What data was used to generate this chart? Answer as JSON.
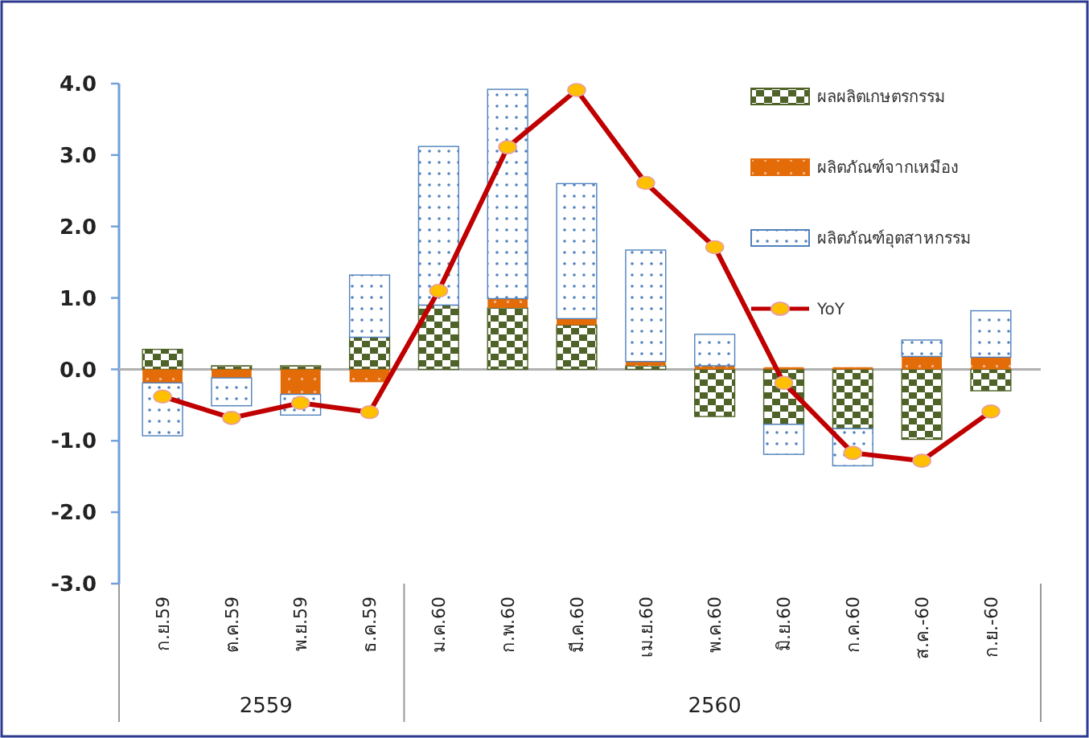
{
  "chart_data": {
    "type": "bar",
    "stacked": true,
    "categories": [
      "ก.ย.59",
      "ต.ค.59",
      "พ.ย.59",
      "ธ.ค.59",
      "ม.ค.60",
      "ก.พ.60",
      "มี.ค.60",
      "เม.ย.60",
      "พ.ค.60",
      "มิ.ย.60",
      "ก.ค.60",
      "ส.ค.-60",
      "ก.ย.-60"
    ],
    "series": [
      {
        "name": "ผลผลิตเกษตรกรรม",
        "color": "#4f6228",
        "values": [
          0.28,
          0.05,
          0.05,
          0.45,
          0.9,
          0.86,
          0.62,
          0.05,
          -0.66,
          -0.77,
          -0.83,
          -0.98,
          -0.3
        ]
      },
      {
        "name": "ผลิตภัณฑ์จากเหมือง",
        "color": "#e36c09",
        "values": [
          -0.19,
          -0.12,
          -0.35,
          -0.18,
          0,
          0.13,
          0.09,
          0.06,
          0.05,
          0.03,
          0.03,
          0.18,
          0.17
        ]
      },
      {
        "name": "ผลิตภัณฑ์อุตสาหกรรม",
        "color": "#4f81bd",
        "values": [
          -0.74,
          -0.39,
          -0.29,
          0.87,
          2.22,
          2.93,
          1.89,
          1.56,
          0.44,
          -0.42,
          -0.52,
          0.23,
          0.65
        ]
      },
      {
        "name": "YoY",
        "type": "line",
        "color": "#c00000",
        "marker": "circle",
        "values": [
          -0.38,
          -0.68,
          -0.47,
          -0.6,
          1.1,
          3.11,
          3.91,
          2.61,
          1.71,
          -0.19,
          -1.17,
          -1.28,
          -0.59
        ]
      }
    ],
    "ylim": [
      -3,
      4
    ],
    "yticks": [
      {
        "value": -3,
        "label": "-3.0"
      },
      {
        "value": -2,
        "label": "-2.0"
      },
      {
        "value": -1,
        "label": "-1.0"
      },
      {
        "value": 0,
        "label": "0.0"
      },
      {
        "value": 1,
        "label": "1.0"
      },
      {
        "value": 2,
        "label": "2.0"
      },
      {
        "value": 3,
        "label": "3.0"
      },
      {
        "value": 4,
        "label": "4.0"
      }
    ],
    "grid": false,
    "legend": "top right",
    "ref_lines": [
      {
        "axis": "y",
        "value": 0,
        "color": "#b0b0b0"
      }
    ],
    "annotations": [
      "2559",
      "2560"
    ]
  }
}
